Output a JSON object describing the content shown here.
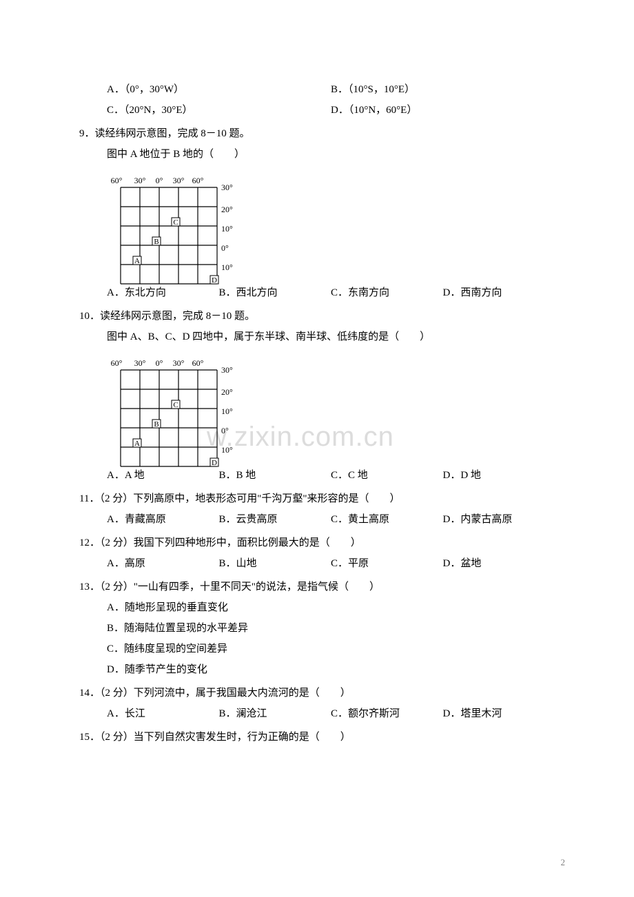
{
  "watermark": "w.zixin.com.cn",
  "page_number": "2",
  "q8_options": {
    "a": "A．（0°，30°W）",
    "b": "B．（10°S，10°E）",
    "c": "C．（20°N，30°E）",
    "d": "D．（10°N，60°E）"
  },
  "q9": {
    "stem": "9．读经纬网示意图，完成 8－10 题。",
    "sub": "图中 A 地位于 B 地的（　　）",
    "a": "A．东北方向",
    "b": "B．西北方向",
    "c": "C．东南方向",
    "d": "D．西南方向"
  },
  "q10": {
    "stem": "10．读经纬网示意图，完成 8－10 题。",
    "sub": "图中 A、B、C、D 四地中，属于东半球、南半球、低纬度的是（　　）",
    "a": "A．A 地",
    "b": "B．B 地",
    "c": "C．C 地",
    "d": "D．D 地"
  },
  "q11": {
    "stem": "11．（2 分）下列高原中，地表形态可用\"千沟万壑\"来形容的是（　　）",
    "a": "A．青藏高原",
    "b": "B．云贵高原",
    "c": "C．黄土高原",
    "d": "D．内蒙古高原"
  },
  "q12": {
    "stem": "12．（2 分）我国下列四种地形中，面积比例最大的是（　　）",
    "a": "A．高原",
    "b": "B．山地",
    "c": "C．平原",
    "d": "D．盆地"
  },
  "q13": {
    "stem": "13．（2 分）\"一山有四季，十里不同天\"的说法，是指气候（　　）",
    "a": "A．随地形呈现的垂直变化",
    "b": "B．随海陆位置呈现的水平差异",
    "c": "C．随纬度呈现的空间差异",
    "d": "D．随季节产生的变化"
  },
  "q14": {
    "stem": "14．（2 分）下列河流中，属于我国最大内流河的是（　　）",
    "a": "A．长江",
    "b": "B．澜沧江",
    "c": "C．额尔齐斯河",
    "d": "D．塔里木河"
  },
  "q15": {
    "stem": "15．（2 分）当下列自然灾害发生时，行为正确的是（　　）"
  },
  "diagram": {
    "grid_stroke": "#000000",
    "label_color": "#000000",
    "font_size": 12,
    "top_labels": [
      "60°",
      "30°",
      "0°",
      "30°",
      "60°"
    ],
    "right_labels": [
      "30°",
      "20°",
      "10°",
      "0°",
      "10°"
    ],
    "points": {
      "A": {
        "col": 1,
        "row": 4
      },
      "B": {
        "col": 2,
        "row": 3
      },
      "C": {
        "col": 3,
        "row": 2
      },
      "D": {
        "col": 5,
        "row": 5
      }
    }
  }
}
